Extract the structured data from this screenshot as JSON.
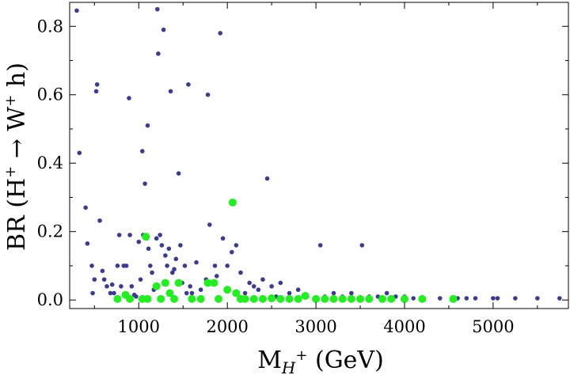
{
  "chart_data": {
    "type": "scatter",
    "title": "",
    "xlabel": {
      "base": "M",
      "subscript_var": "H",
      "subscript_sup": "+",
      "unit": "(GeV)"
    },
    "ylabel": {
      "prefix": "BR (H",
      "sup1": "+",
      "arrow": "→",
      "mid": "W",
      "sup2": "+",
      "suffix": "h)"
    },
    "xlim": [
      220,
      5850
    ],
    "ylim": [
      -0.025,
      0.87
    ],
    "x_ticks": [
      1000,
      2000,
      3000,
      4000,
      5000
    ],
    "x_tick_labels": [
      "1000",
      "2000",
      "3000",
      "4000",
      "5000"
    ],
    "y_ticks": [
      0.0,
      0.2,
      0.4,
      0.6,
      0.8
    ],
    "y_tick_labels": [
      "0.0",
      "0.2",
      "0.4",
      "0.6",
      "0.8"
    ],
    "grid": false,
    "colors": {
      "series_blue": "#3b3b8f",
      "series_green": "#22ee22",
      "axis": "#000000"
    },
    "series": [
      {
        "name": "blue",
        "points": [
          [
            300,
            0.846
          ],
          [
            330,
            0.43
          ],
          [
            400,
            0.27
          ],
          [
            420,
            0.165
          ],
          [
            470,
            0.1
          ],
          [
            480,
            0.02
          ],
          [
            500,
            0.06
          ],
          [
            520,
            0.61
          ],
          [
            530,
            0.63
          ],
          [
            560,
            0.232
          ],
          [
            590,
            0.085
          ],
          [
            610,
            0.06
          ],
          [
            640,
            0.04
          ],
          [
            680,
            0.02
          ],
          [
            700,
            0.045
          ],
          [
            720,
            0.02
          ],
          [
            760,
            0.1
          ],
          [
            780,
            0.19
          ],
          [
            800,
            0.04
          ],
          [
            830,
            0.1
          ],
          [
            860,
            0.1
          ],
          [
            890,
            0.59
          ],
          [
            900,
            0.19
          ],
          [
            920,
            0.04
          ],
          [
            950,
            0.015
          ],
          [
            970,
            0.01
          ],
          [
            1000,
            0.17
          ],
          [
            1020,
            0.06
          ],
          [
            1040,
            0.435
          ],
          [
            1050,
            0.19
          ],
          [
            1070,
            0.34
          ],
          [
            1090,
            0.18
          ],
          [
            1100,
            0.51
          ],
          [
            1110,
            0.15
          ],
          [
            1130,
            0.1
          ],
          [
            1150,
            0.08
          ],
          [
            1170,
            0.03
          ],
          [
            1200,
            0.18
          ],
          [
            1210,
            0.85
          ],
          [
            1220,
            0.72
          ],
          [
            1240,
            0.19
          ],
          [
            1260,
            0.16
          ],
          [
            1280,
            0.79
          ],
          [
            1300,
            0.13
          ],
          [
            1320,
            0.1
          ],
          [
            1340,
            0.15
          ],
          [
            1360,
            0.61
          ],
          [
            1380,
            0.08
          ],
          [
            1400,
            0.09
          ],
          [
            1420,
            0.12
          ],
          [
            1450,
            0.37
          ],
          [
            1470,
            0.16
          ],
          [
            1490,
            0.05
          ],
          [
            1520,
            0.1
          ],
          [
            1540,
            0.02
          ],
          [
            1560,
            0.63
          ],
          [
            1580,
            0.04
          ],
          [
            1600,
            0.02
          ],
          [
            1650,
            0.11
          ],
          [
            1700,
            0.03
          ],
          [
            1760,
            0.06
          ],
          [
            1780,
            0.6
          ],
          [
            1800,
            0.22
          ],
          [
            1820,
            0.05
          ],
          [
            1860,
            0.1
          ],
          [
            1880,
            0.07
          ],
          [
            1920,
            0.78
          ],
          [
            1950,
            0.18
          ],
          [
            2000,
            0.1
          ],
          [
            2050,
            0.14
          ],
          [
            2100,
            0.16
          ],
          [
            2150,
            0.08
          ],
          [
            2200,
            0.02
          ],
          [
            2250,
            0.05
          ],
          [
            2300,
            0.04
          ],
          [
            2350,
            0.03
          ],
          [
            2400,
            0.06
          ],
          [
            2450,
            0.355
          ],
          [
            2500,
            0.04
          ],
          [
            2550,
            0.01
          ],
          [
            2600,
            0.05
          ],
          [
            2700,
            0.02
          ],
          [
            2800,
            0.03
          ],
          [
            2900,
            0.01
          ],
          [
            3050,
            0.16
          ],
          [
            3100,
            0.01
          ],
          [
            3200,
            0.02
          ],
          [
            3300,
            0.01
          ],
          [
            3400,
            0.02
          ],
          [
            3520,
            0.16
          ],
          [
            3600,
            0.01
          ],
          [
            3700,
            0.01
          ],
          [
            3800,
            0.02
          ],
          [
            3900,
            0.01
          ],
          [
            4000,
            0.01
          ],
          [
            4100,
            0.005
          ],
          [
            4200,
            0.005
          ],
          [
            4400,
            0.005
          ],
          [
            4600,
            0.005
          ],
          [
            4700,
            0.005
          ],
          [
            4800,
            0.005
          ],
          [
            5000,
            0.005
          ],
          [
            5050,
            0.005
          ],
          [
            5250,
            0.005
          ],
          [
            5500,
            0.005
          ],
          [
            5750,
            0.005
          ]
        ]
      },
      {
        "name": "green",
        "points": [
          [
            760,
            0.003
          ],
          [
            850,
            0.015
          ],
          [
            900,
            0.003
          ],
          [
            1040,
            0.003
          ],
          [
            1080,
            0.185
          ],
          [
            1100,
            0.003
          ],
          [
            1200,
            0.04
          ],
          [
            1250,
            0.003
          ],
          [
            1300,
            0.05
          ],
          [
            1350,
            0.02
          ],
          [
            1400,
            0.003
          ],
          [
            1450,
            0.05
          ],
          [
            1600,
            0.003
          ],
          [
            1700,
            0.003
          ],
          [
            1780,
            0.05
          ],
          [
            1850,
            0.05
          ],
          [
            1900,
            0.003
          ],
          [
            2000,
            0.03
          ],
          [
            2060,
            0.285
          ],
          [
            2100,
            0.02
          ],
          [
            2150,
            0.003
          ],
          [
            2200,
            0.003
          ],
          [
            2300,
            0.003
          ],
          [
            2400,
            0.003
          ],
          [
            2500,
            0.005
          ],
          [
            2600,
            0.003
          ],
          [
            2700,
            0.003
          ],
          [
            2800,
            0.003
          ],
          [
            2880,
            0.012
          ],
          [
            3000,
            0.003
          ],
          [
            3100,
            0.003
          ],
          [
            3200,
            0.003
          ],
          [
            3300,
            0.003
          ],
          [
            3400,
            0.003
          ],
          [
            3500,
            0.003
          ],
          [
            3600,
            0.003
          ],
          [
            3750,
            0.003
          ],
          [
            3850,
            0.003
          ],
          [
            4000,
            0.003
          ],
          [
            4200,
            0.003
          ],
          [
            4550,
            0.003
          ]
        ]
      }
    ]
  }
}
